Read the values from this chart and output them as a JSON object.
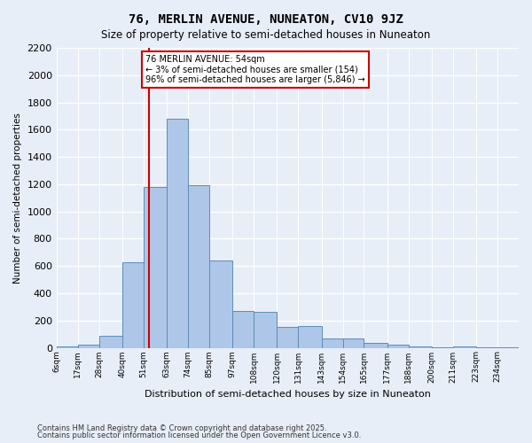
{
  "title": "76, MERLIN AVENUE, NUNEATON, CV10 9JZ",
  "subtitle": "Size of property relative to semi-detached houses in Nuneaton",
  "xlabel": "Distribution of semi-detached houses by size in Nuneaton",
  "ylabel": "Number of semi-detached properties",
  "footnote1": "Contains HM Land Registry data © Crown copyright and database right 2025.",
  "footnote2": "Contains public sector information licensed under the Open Government Licence v3.0.",
  "property_size": 54,
  "annotation_title": "76 MERLIN AVENUE: 54sqm",
  "annotation_line1": "← 3% of semi-detached houses are smaller (154)",
  "annotation_line2": "96% of semi-detached houses are larger (5,846) →",
  "bar_color": "#aec6e8",
  "bar_edge_color": "#5b8db8",
  "vline_color": "#cc0000",
  "annotation_box_color": "#ffffff",
  "annotation_box_edge": "#cc0000",
  "background_color": "#e8eef8",
  "grid_color": "#ffffff",
  "bin_edges": [
    6,
    17,
    28,
    40,
    51,
    63,
    74,
    85,
    97,
    108,
    120,
    131,
    143,
    154,
    165,
    177,
    188,
    200,
    211,
    223,
    234,
    245
  ],
  "bin_labels": [
    "6sqm",
    "17sqm",
    "28sqm",
    "40sqm",
    "51sqm",
    "63sqm",
    "74sqm",
    "85sqm",
    "97sqm",
    "108sqm",
    "120sqm",
    "131sqm",
    "143sqm",
    "154sqm",
    "165sqm",
    "177sqm",
    "188sqm",
    "200sqm",
    "211sqm",
    "223sqm",
    "234sqm"
  ],
  "bar_heights": [
    10,
    20,
    90,
    630,
    1180,
    1680,
    1190,
    640,
    270,
    265,
    155,
    160,
    70,
    70,
    35,
    25,
    10,
    5,
    10,
    5,
    3
  ],
  "ylim": [
    0,
    2200
  ],
  "yticks": [
    0,
    200,
    400,
    600,
    800,
    1000,
    1200,
    1400,
    1600,
    1800,
    2000,
    2200
  ]
}
